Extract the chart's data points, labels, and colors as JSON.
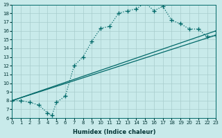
{
  "xlabel": "Humidex (Indice chaleur)",
  "xlim": [
    0,
    23
  ],
  "ylim": [
    6,
    19
  ],
  "xticks": [
    0,
    1,
    2,
    3,
    4,
    5,
    6,
    7,
    8,
    9,
    10,
    11,
    12,
    13,
    14,
    15,
    16,
    17,
    18,
    19,
    20,
    21,
    22,
    23
  ],
  "yticks": [
    6,
    7,
    8,
    9,
    10,
    11,
    12,
    13,
    14,
    15,
    16,
    17,
    18,
    19
  ],
  "bg_color": "#c8eaea",
  "line_color": "#006868",
  "grid_color": "#a8cccc",
  "curve_main_x": [
    0,
    1,
    2,
    3,
    4,
    4.5,
    5,
    6,
    7,
    8,
    9,
    10,
    11,
    12,
    13,
    14,
    15,
    16,
    17,
    18,
    19,
    20,
    21,
    22,
    23
  ],
  "curve_main_y": [
    8,
    8,
    7.8,
    7.5,
    6.6,
    6.3,
    7.8,
    8.5,
    12.0,
    13.0,
    14.8,
    16.3,
    16.5,
    18.0,
    18.3,
    18.5,
    19.2,
    18.3,
    18.8,
    17.2,
    16.8,
    16.2,
    16.2,
    15.3,
    15.5
  ],
  "curve2_x": [
    0,
    23
  ],
  "curve2_y": [
    8,
    16.0
  ],
  "curve3_x": [
    0,
    23
  ],
  "curve3_y": [
    8,
    15.5
  ]
}
